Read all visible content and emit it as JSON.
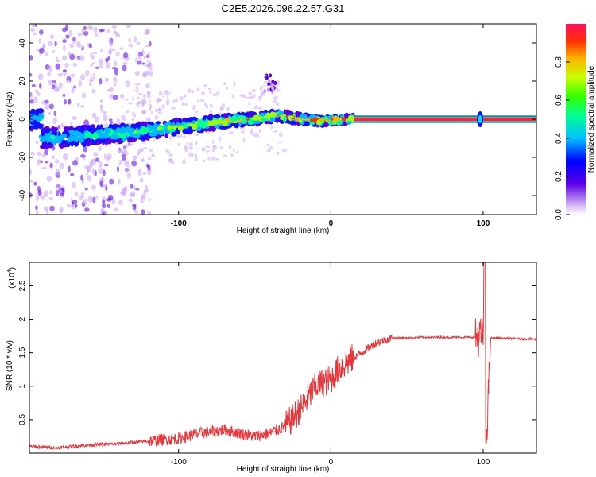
{
  "title": "C2E5.2026.096.22.57.G31",
  "chart_data": [
    {
      "type": "heatmap",
      "name": "spectrogram",
      "xlabel": "Height of straight line (km)",
      "ylabel": "Frequency (Hz)",
      "xlim": [
        -198,
        135
      ],
      "ylim": [
        -50,
        50
      ],
      "xticks": [
        -100,
        0,
        100
      ],
      "yticks": [
        -40,
        -20,
        0,
        20,
        40
      ],
      "colorbar": {
        "label": "Normalized spectral amplitude",
        "range": [
          0,
          1
        ],
        "ticks": [
          0.0,
          0.2,
          0.4,
          0.6,
          0.8
        ]
      },
      "ridge": [
        {
          "x": -190,
          "f": -10
        },
        {
          "x": -170,
          "f": -9
        },
        {
          "x": -150,
          "f": -8
        },
        {
          "x": -130,
          "f": -7
        },
        {
          "x": -110,
          "f": -5
        },
        {
          "x": -90,
          "f": -3
        },
        {
          "x": -70,
          "f": -1
        },
        {
          "x": -50,
          "f": 0
        },
        {
          "x": -35,
          "f": 2
        },
        {
          "x": -20,
          "f": 0
        },
        {
          "x": -5,
          "f": -1
        },
        {
          "x": 15,
          "f": 0
        },
        {
          "x": 135,
          "f": 0
        }
      ],
      "annotations": [
        {
          "x": -40,
          "f": 18,
          "note": "isolated patch"
        },
        {
          "x": 98,
          "f": 0,
          "note": "spike"
        }
      ]
    },
    {
      "type": "line",
      "name": "snr",
      "xlabel": "Height of straight line (km)",
      "ylabel": "SNR (10 * v/v)",
      "yscale_label": "(x10",
      "yscale_exponent": "4",
      "xlim": [
        -198,
        135
      ],
      "ylim": [
        0,
        2.85
      ],
      "xticks": [
        -100,
        0,
        100
      ],
      "yticks": [
        0.5,
        1.0,
        1.5,
        2.0,
        2.5
      ],
      "color": "#e8373b",
      "series": [
        {
          "name": "SNR",
          "x": [
            -198,
            -180,
            -160,
            -140,
            -120,
            -100,
            -85,
            -70,
            -60,
            -50,
            -40,
            -30,
            -20,
            -10,
            0,
            5,
            10,
            20,
            30,
            40,
            50,
            60,
            70,
            80,
            90,
            95,
            100,
            101,
            102,
            105,
            110,
            120,
            135
          ],
          "y": [
            0.1,
            0.08,
            0.12,
            0.14,
            0.18,
            0.22,
            0.3,
            0.35,
            0.3,
            0.25,
            0.3,
            0.4,
            0.65,
            1.0,
            1.1,
            1.25,
            1.35,
            1.5,
            1.65,
            1.72,
            1.72,
            1.73,
            1.73,
            1.73,
            1.73,
            1.73,
            1.75,
            2.85,
            0.15,
            1.72,
            1.72,
            1.71,
            1.7
          ]
        }
      ]
    }
  ]
}
